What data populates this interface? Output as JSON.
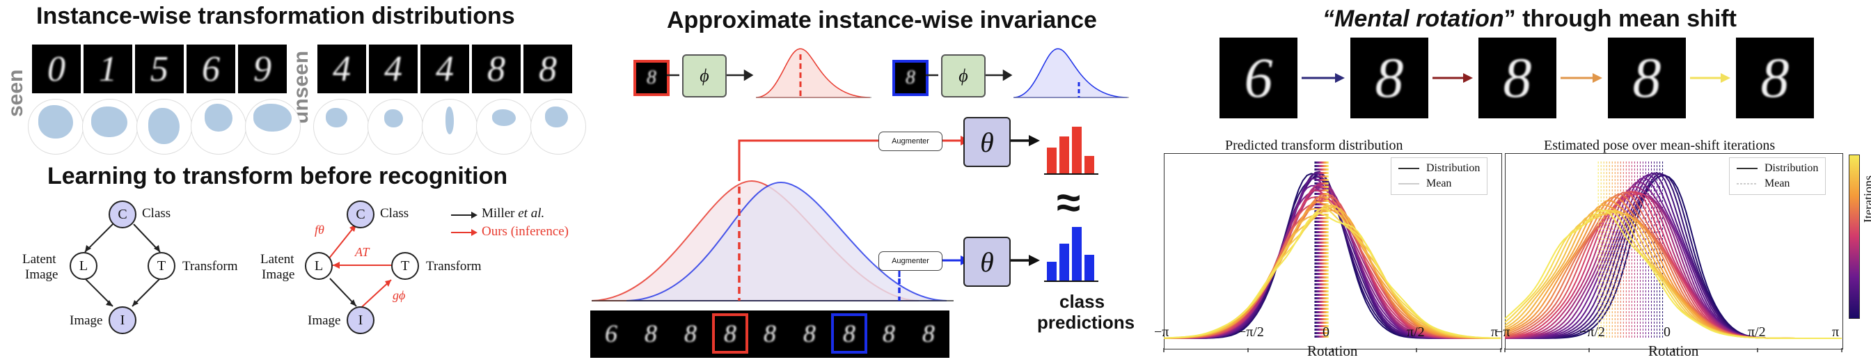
{
  "left": {
    "title": "Instance-wise transformation distributions",
    "seen_label": "seen",
    "unseen_label": "unseen",
    "seen_digits": [
      "0",
      "1",
      "5",
      "6",
      "9"
    ],
    "unseen_digits": [
      "4",
      "4",
      "4",
      "8",
      "8"
    ],
    "subtitle": "Learning to transform before recognition",
    "graph1": {
      "class_node": "C",
      "class_label": "Class",
      "latent_node": "L",
      "latent_label_1": "Latent",
      "latent_label_2": "Image",
      "transform_node": "T",
      "transform_label": "Transform",
      "image_node": "I",
      "image_label": "Image"
    },
    "graph2": {
      "class_node": "C",
      "class_label": "Class",
      "latent_node": "L",
      "latent_label_1": "Latent",
      "latent_label_2": "Image",
      "transform_node": "T",
      "transform_label": "Transform",
      "image_node": "I",
      "image_label": "Image",
      "f_label": "fθ",
      "a_label": "AT",
      "g_label": "gϕ"
    },
    "legend_miller": "Miller",
    "legend_miller_etal": "et al.",
    "legend_ours": "Ours (inference)",
    "colors": {
      "accent_red": "#e8392d",
      "node_fill": "#cfcff5",
      "blob": "#a9c4df"
    }
  },
  "middle": {
    "title": "Approximate instance-wise invariance",
    "phi_label": "ϕ",
    "theta_label": "θ",
    "augmenter_label": "Augmenter",
    "approx_symbol": "≈",
    "class_predictions_line1": "class",
    "class_predictions_line2": "predictions",
    "strip_digits": [
      "6",
      "8",
      "8",
      "8",
      "8",
      "8",
      "8",
      "8",
      "8"
    ],
    "colors": {
      "red": "#e8392d",
      "blue": "#1a2ee8",
      "phi_fill": "#cfe3c2",
      "theta_fill": "#c9c9ea"
    }
  },
  "right": {
    "title_italic": "“Mental rotation",
    "title_rest": "” through mean shift",
    "sequence_digits": [
      "6",
      "8",
      "8",
      "8",
      "8"
    ],
    "arrow_colors": [
      "#2d2a7a",
      "#8a1f1f",
      "#e0964a",
      "#f2e05c"
    ],
    "plot1": {
      "title": "Predicted transform distribution",
      "legend": [
        "Distribution",
        "Mean"
      ],
      "xlabel": "Rotation"
    },
    "plot2": {
      "title": "Estimated pose over mean-shift iterations",
      "legend": [
        "Distribution",
        "Mean"
      ],
      "xlabel": "Rotation"
    },
    "xticks": [
      "−π",
      "−π/2",
      "0",
      "π/2",
      "π"
    ],
    "colorbar_label": "Iterations"
  },
  "chart_data": [
    {
      "type": "line",
      "title": "Predicted transform distribution",
      "xlabel": "Rotation",
      "ylabel": "",
      "xlim": [
        -3.1416,
        3.1416
      ],
      "xticks": [
        "−π",
        "−π/2",
        "0",
        "π/2",
        "π"
      ],
      "legend": [
        "Distribution",
        "Mean"
      ],
      "legend_position": "top-right",
      "series_count": 24,
      "mean_center": -0.2,
      "mean_spread": 0.25
    },
    {
      "type": "line",
      "title": "Estimated pose over mean-shift iterations",
      "xlabel": "Rotation",
      "ylabel": "",
      "xlim": [
        -3.1416,
        3.1416
      ],
      "xticks": [
        "−π",
        "−π/2",
        "0",
        "π/2",
        "π"
      ],
      "legend": [
        "Distribution",
        "Mean"
      ],
      "legend_position": "top-right",
      "colorbar": "Iterations",
      "series_count": 24,
      "mean_start": -0.2,
      "mean_end": -1.4
    }
  ]
}
